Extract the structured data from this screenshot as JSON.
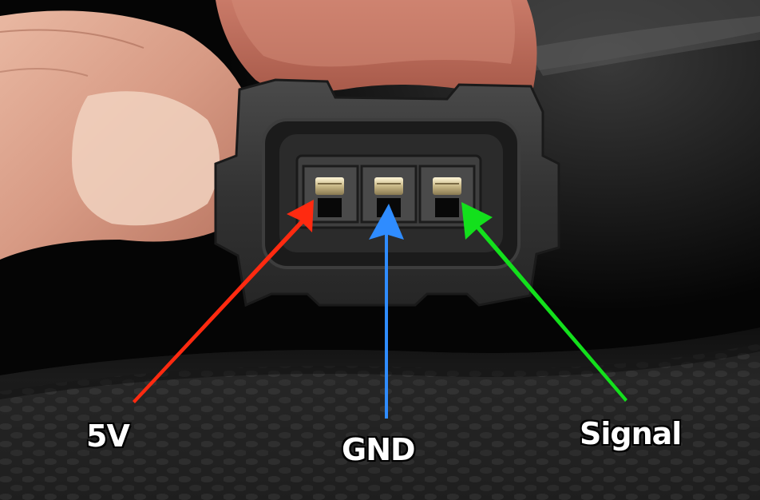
{
  "labels": {
    "five_volt": "5V",
    "ground": "GND",
    "signal": "Signal"
  },
  "colors": {
    "five_volt_arrow": "#ff2a10",
    "ground_arrow": "#2f8cff",
    "signal_arrow": "#13e01c"
  }
}
